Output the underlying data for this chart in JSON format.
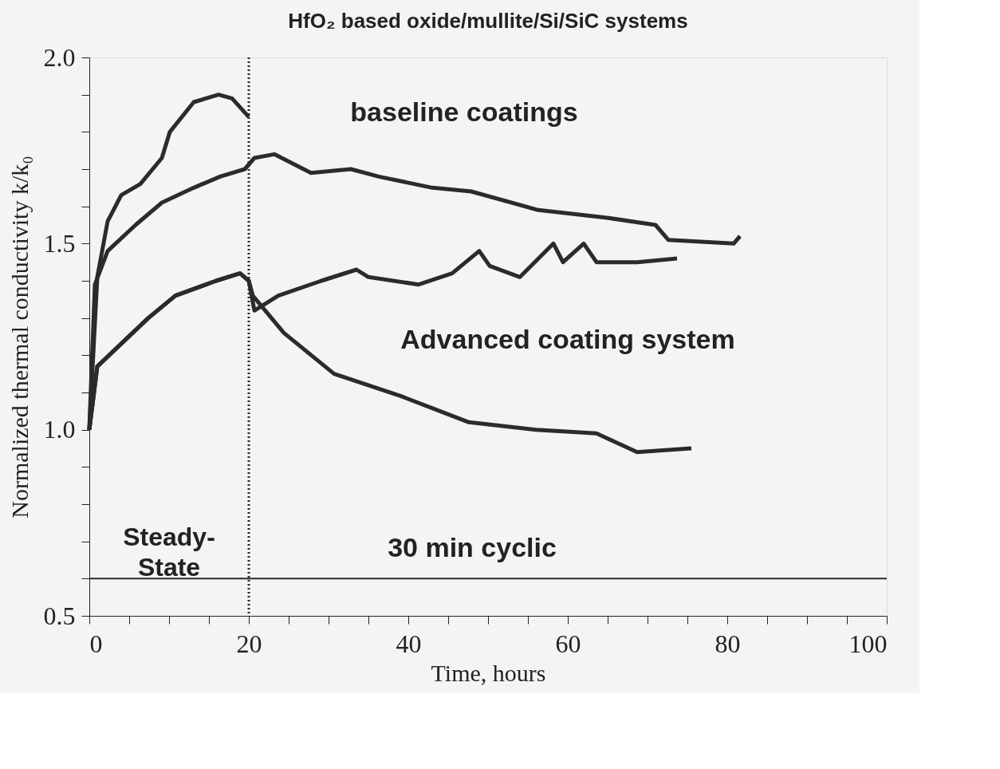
{
  "chart_data": {
    "type": "line",
    "title": "HfO₂ based oxide/mullite/Si/SiC systems",
    "xlabel": "Time, hours",
    "ylabel": "Normalized thermal conductivity k/k₀",
    "xlim": [
      0,
      100
    ],
    "ylim": [
      0.5,
      2.0
    ],
    "xticks": [
      0,
      {
        "value": 5,
        "label": null
      },
      {
        "value": 10,
        "label": null
      },
      {
        "value": 15,
        "label": null
      },
      20,
      {
        "value": 25,
        "label": null
      },
      {
        "value": 30,
        "label": null
      },
      {
        "value": 35,
        "label": null
      },
      40,
      {
        "value": 45,
        "label": null
      },
      {
        "value": 50,
        "label": null
      },
      {
        "value": 55,
        "label": null
      },
      60,
      {
        "value": 65,
        "label": null
      },
      {
        "value": 70,
        "label": null
      },
      {
        "value": 75,
        "label": null
      },
      80,
      {
        "value": 85,
        "label": null
      },
      {
        "value": 90,
        "label": null
      },
      {
        "value": 95,
        "label": null
      },
      100
    ],
    "yticks": [
      {
        "value": 0.5,
        "label": "0.5"
      },
      {
        "value": 0.6,
        "label": null
      },
      {
        "value": 0.7,
        "label": null
      },
      {
        "value": 0.8,
        "label": null
      },
      {
        "value": 0.9,
        "label": null
      },
      {
        "value": 1.0,
        "label": "1.0"
      },
      {
        "value": 1.1,
        "label": null
      },
      {
        "value": 1.2,
        "label": null
      },
      {
        "value": 1.3,
        "label": null
      },
      {
        "value": 1.4,
        "label": null
      },
      {
        "value": 1.5,
        "label": "1.5"
      },
      {
        "value": 1.6,
        "label": null
      },
      {
        "value": 1.7,
        "label": null
      },
      {
        "value": 1.8,
        "label": null
      },
      {
        "value": 1.9,
        "label": null
      },
      {
        "value": 2.0,
        "label": "2.0"
      }
    ],
    "grid": false,
    "line_style": "solid",
    "series": [
      {
        "color": "#2b2b2b",
        "x": [
          0,
          1.0,
          2.3,
          4.0,
          6.4,
          9.1,
          10.1,
          13.1,
          16.2,
          17.9,
          20.0
        ],
        "values": [
          1.0,
          1.41,
          1.56,
          1.63,
          1.66,
          1.73,
          1.8,
          1.88,
          1.9,
          1.89,
          1.84
        ]
      },
      {
        "color": "#2b2b2b",
        "x": [
          0,
          0.7,
          2.3,
          5.8,
          9.1,
          13.1,
          16.4,
          19.5,
          20.7,
          23.2,
          27.8,
          32.8,
          36.3,
          43.0,
          47.9,
          56.3,
          64.7,
          71.0,
          72.6,
          80.8,
          81.6
        ],
        "values": [
          1.0,
          1.39,
          1.48,
          1.55,
          1.61,
          1.65,
          1.68,
          1.7,
          1.73,
          1.74,
          1.69,
          1.7,
          1.68,
          1.65,
          1.64,
          1.59,
          1.57,
          1.55,
          1.51,
          1.5,
          1.52
        ]
      },
      {
        "color": "#2b2b2b",
        "x": [
          0,
          1.0,
          7.4,
          10.8,
          15.9,
          18.9,
          20.0,
          20.7,
          23.7,
          29.1,
          33.5,
          35.0,
          41.3,
          45.5,
          48.9,
          50.2,
          54.0,
          58.2,
          59.4,
          62.0,
          63.6,
          68.7,
          73.7
        ],
        "values": [
          1.0,
          1.17,
          1.3,
          1.36,
          1.4,
          1.42,
          1.4,
          1.32,
          1.36,
          1.4,
          1.43,
          1.41,
          1.39,
          1.42,
          1.48,
          1.44,
          1.41,
          1.5,
          1.45,
          1.5,
          1.45,
          1.45,
          1.46
        ]
      },
      {
        "color": "#2b2b2b",
        "x": [
          0,
          1.0,
          7.4,
          10.8,
          15.9,
          18.9,
          20.0,
          20.5,
          24.4,
          30.7,
          39.1,
          47.6,
          56.0,
          63.6,
          68.7,
          75.5
        ],
        "values": [
          1.0,
          1.17,
          1.3,
          1.36,
          1.4,
          1.42,
          1.4,
          1.36,
          1.26,
          1.15,
          1.09,
          1.02,
          1.0,
          0.99,
          0.94,
          0.95
        ]
      }
    ],
    "ref_lines": [
      {
        "axis": "x",
        "value": 20,
        "line_style": "dotted",
        "color": "#2b2b2b"
      },
      {
        "axis": "y",
        "value": 0.6,
        "line_style": "solid",
        "color": "#2b2b2b"
      }
    ],
    "annotations": [
      "baseline coatings",
      "Advanced coating system",
      "Steady-\nState",
      "30 min cyclic"
    ]
  }
}
